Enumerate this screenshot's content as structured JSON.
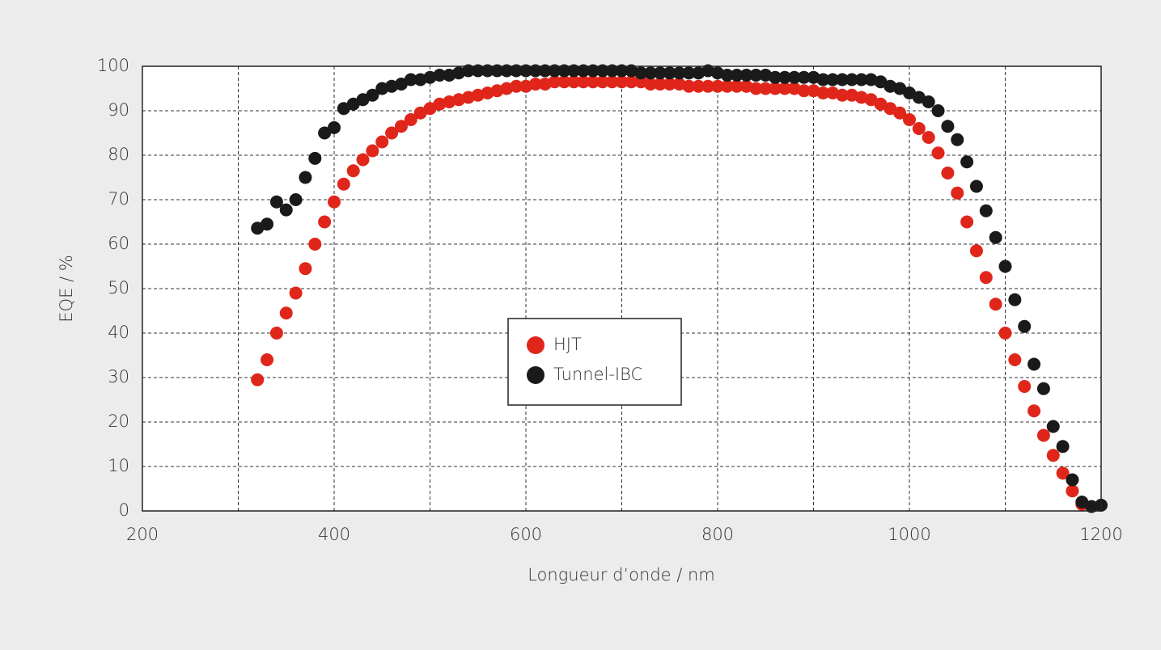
{
  "chart_data": {
    "type": "scatter",
    "x_label": "Longueur d’onde / nm",
    "y_label": "EQE / %",
    "xlim": [
      200,
      1200
    ],
    "xticks": [
      200,
      400,
      600,
      800,
      1000,
      1200
    ],
    "x_minor_ticks": [
      300,
      500,
      700,
      900,
      1100
    ],
    "ylim": [
      0,
      100
    ],
    "yticks": [
      0,
      10,
      20,
      30,
      40,
      50,
      60,
      70,
      80,
      90,
      100
    ],
    "grid": true,
    "legend": "center",
    "series": [
      {
        "name": "HJT",
        "color": "#e0261b",
        "x": [
          320,
          330,
          340,
          350,
          360,
          370,
          380,
          390,
          400,
          410,
          420,
          430,
          440,
          450,
          460,
          470,
          480,
          490,
          500,
          510,
          520,
          530,
          540,
          550,
          560,
          570,
          580,
          590,
          600,
          610,
          620,
          630,
          640,
          650,
          660,
          670,
          680,
          690,
          700,
          710,
          720,
          730,
          740,
          750,
          760,
          770,
          780,
          790,
          800,
          810,
          820,
          830,
          840,
          850,
          860,
          870,
          880,
          890,
          900,
          910,
          920,
          930,
          940,
          950,
          960,
          970,
          980,
          990,
          1000,
          1010,
          1020,
          1030,
          1040,
          1050,
          1060,
          1070,
          1080,
          1090,
          1100,
          1110,
          1120,
          1130,
          1140,
          1150,
          1160,
          1170,
          1180
        ],
        "values": [
          29.5,
          34,
          40,
          44.5,
          49,
          54.5,
          60,
          65,
          69.5,
          73.5,
          76.5,
          79,
          81,
          83,
          85,
          86.5,
          88,
          89.5,
          90.5,
          91.5,
          92,
          92.5,
          93,
          93.5,
          94,
          94.5,
          95,
          95.5,
          95.5,
          96,
          96,
          96.5,
          96.5,
          96.5,
          96.5,
          96.5,
          96.5,
          96.5,
          96.5,
          96.5,
          96.5,
          96,
          96,
          96,
          96,
          95.5,
          95.5,
          95.5,
          95.5,
          95.5,
          95.5,
          95.5,
          95,
          95,
          95,
          95,
          95,
          94.5,
          94.5,
          94,
          94,
          93.5,
          93.5,
          93,
          92.5,
          91.5,
          90.5,
          89.5,
          88,
          86,
          84,
          80.5,
          76,
          71.5,
          65,
          58.5,
          52.5,
          46.5,
          40,
          34,
          28,
          22.5,
          17,
          12.5,
          8.5,
          4.5,
          1.5
        ]
      },
      {
        "name": "Tunnel-IBC",
        "color": "#1a1a1a",
        "x": [
          320,
          330,
          340,
          350,
          360,
          370,
          380,
          390,
          400,
          410,
          420,
          430,
          440,
          450,
          460,
          470,
          480,
          490,
          500,
          510,
          520,
          530,
          540,
          550,
          560,
          570,
          580,
          590,
          600,
          610,
          620,
          630,
          640,
          650,
          660,
          670,
          680,
          690,
          700,
          710,
          720,
          730,
          740,
          750,
          760,
          770,
          780,
          790,
          800,
          810,
          820,
          830,
          840,
          850,
          860,
          870,
          880,
          890,
          900,
          910,
          920,
          930,
          940,
          950,
          960,
          970,
          980,
          990,
          1000,
          1010,
          1020,
          1030,
          1040,
          1050,
          1060,
          1070,
          1080,
          1090,
          1100,
          1110,
          1120,
          1130,
          1140,
          1150,
          1160,
          1170,
          1180,
          1190,
          1200
        ],
        "values": [
          63.6,
          64.5,
          69.5,
          67.7,
          70,
          75,
          79.3,
          85,
          86.2,
          90.5,
          91.5,
          92.5,
          93.5,
          95,
          95.5,
          96,
          97,
          97,
          97.5,
          98,
          98,
          98.5,
          99,
          99,
          99,
          99,
          99,
          99,
          99,
          99,
          99,
          99,
          99,
          99,
          99,
          99,
          99,
          99,
          99,
          99,
          98.5,
          98.5,
          98.5,
          98.5,
          98.5,
          98.5,
          98.5,
          99,
          98.5,
          98,
          98,
          98,
          98,
          98,
          97.5,
          97.5,
          97.5,
          97.5,
          97.5,
          97,
          97,
          97,
          97,
          97,
          97,
          96.5,
          95.5,
          95,
          94,
          93,
          92,
          90,
          86.5,
          83.5,
          78.5,
          73,
          67.5,
          61.5,
          55,
          47.5,
          41.5,
          33,
          27.5,
          19,
          14.5,
          7,
          2,
          1,
          1.3
        ]
      }
    ]
  }
}
